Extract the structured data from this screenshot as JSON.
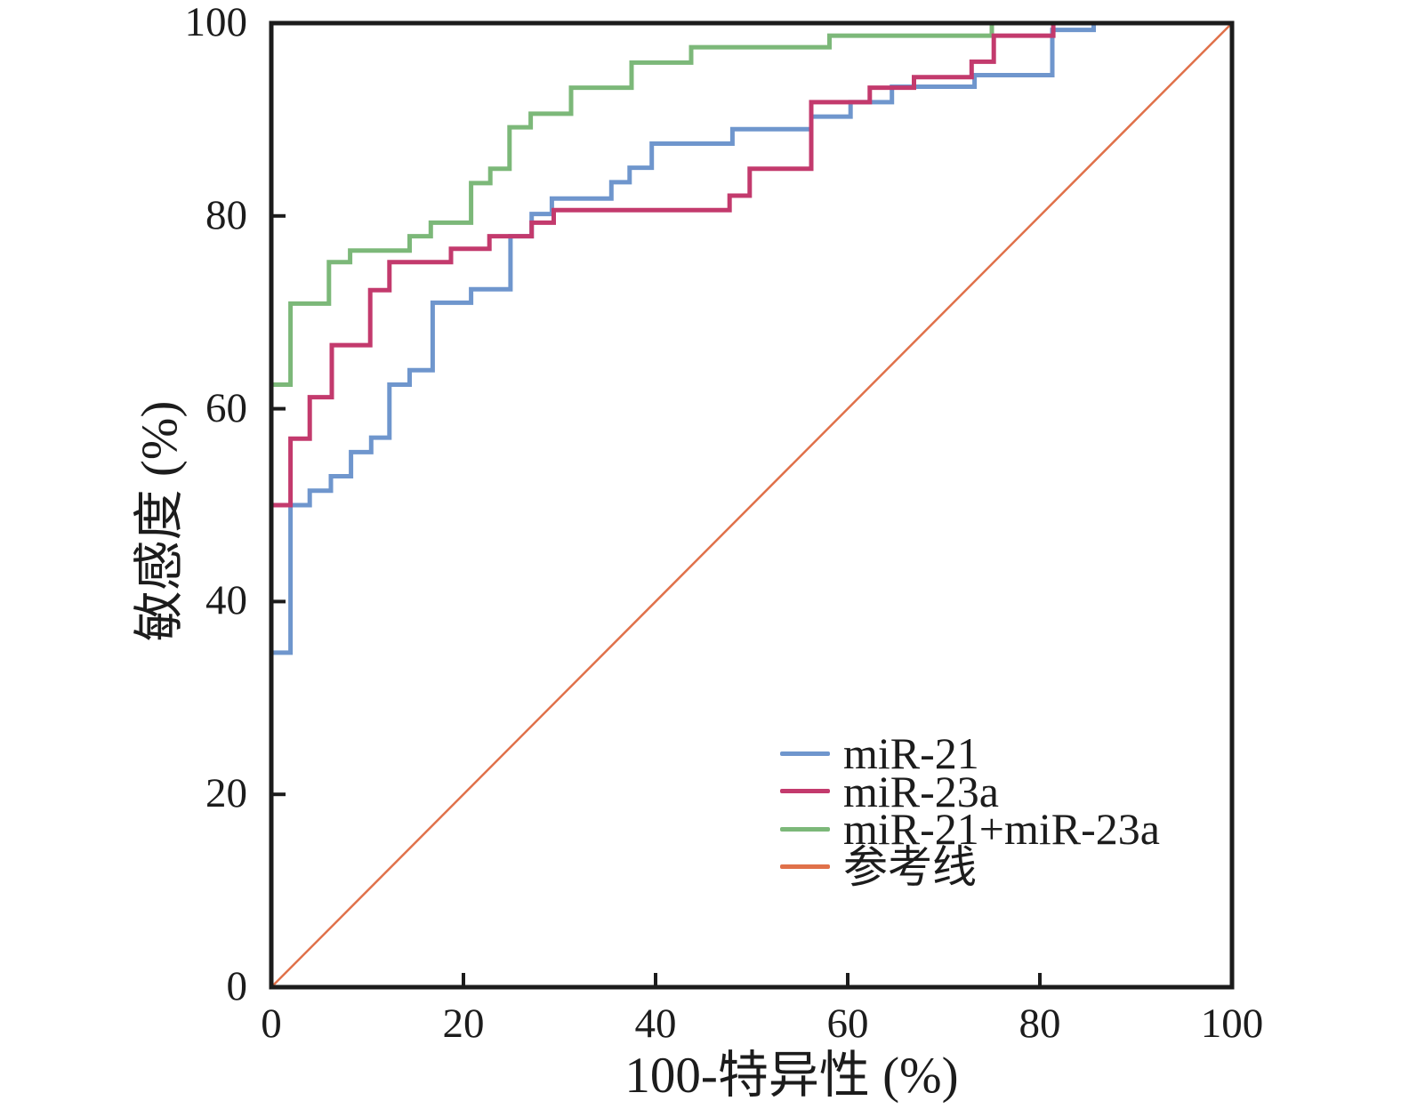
{
  "page": {
    "background": "#ffffff",
    "text_color": "#1c1c1c"
  },
  "chart_data": {
    "type": "line",
    "subtype": "roc_step_curves",
    "title": "",
    "xlabel": "100-特异性 (%)",
    "ylabel": "敏感度 (%)",
    "xlim": [
      0,
      100
    ],
    "ylim": [
      0,
      100
    ],
    "x_ticks": [
      "0",
      "20",
      "40",
      "60",
      "80",
      "100"
    ],
    "x_tick_values": [
      0,
      20,
      40,
      60,
      80,
      100
    ],
    "y_ticks": [
      "0",
      "20",
      "40",
      "60",
      "80",
      "100"
    ],
    "y_tick_values": [
      0,
      20,
      40,
      60,
      80,
      100
    ],
    "grid": false,
    "legend_position": "inside-lower-right",
    "axis_color": "#1c1c1c",
    "series": [
      {
        "id": "mir21",
        "name": "miR-21",
        "color": "#6f96cd",
        "line_width": 5,
        "points": [
          [
            0,
            0
          ],
          [
            0,
            34.7
          ],
          [
            2,
            34.7
          ],
          [
            2,
            50
          ],
          [
            4,
            50
          ],
          [
            4,
            51.5
          ],
          [
            6.2,
            51.5
          ],
          [
            6.2,
            53
          ],
          [
            8.3,
            53
          ],
          [
            8.3,
            55.5
          ],
          [
            10.4,
            55.5
          ],
          [
            10.4,
            57
          ],
          [
            12.3,
            57
          ],
          [
            12.3,
            62.5
          ],
          [
            14.4,
            62.5
          ],
          [
            14.4,
            64
          ],
          [
            16.8,
            64
          ],
          [
            16.8,
            71
          ],
          [
            20.8,
            71
          ],
          [
            20.8,
            72.4
          ],
          [
            24.9,
            72.4
          ],
          [
            24.9,
            77.9
          ],
          [
            27.1,
            77.9
          ],
          [
            27.1,
            80.2
          ],
          [
            29.2,
            80.2
          ],
          [
            29.2,
            81.8
          ],
          [
            35.4,
            81.8
          ],
          [
            35.4,
            83.5
          ],
          [
            37.3,
            83.5
          ],
          [
            37.3,
            85
          ],
          [
            39.6,
            85
          ],
          [
            39.6,
            87.5
          ],
          [
            48,
            87.5
          ],
          [
            48,
            89
          ],
          [
            56.2,
            89
          ],
          [
            56.2,
            90.3
          ],
          [
            60.3,
            90.3
          ],
          [
            60.3,
            91.8
          ],
          [
            64.6,
            91.8
          ],
          [
            64.6,
            93.4
          ],
          [
            73.2,
            93.4
          ],
          [
            73.2,
            94.6
          ],
          [
            81.3,
            94.6
          ],
          [
            81.3,
            99.3
          ],
          [
            85.6,
            99.3
          ],
          [
            85.6,
            100
          ],
          [
            100,
            100
          ]
        ]
      },
      {
        "id": "mir23a",
        "name": "miR-23a",
        "color": "#c33a6d",
        "line_width": 5,
        "points": [
          [
            0,
            0
          ],
          [
            0,
            50
          ],
          [
            2,
            50
          ],
          [
            2,
            56.9
          ],
          [
            4,
            56.9
          ],
          [
            4,
            61.2
          ],
          [
            6.3,
            61.2
          ],
          [
            6.3,
            66.6
          ],
          [
            10.3,
            66.6
          ],
          [
            10.3,
            72.3
          ],
          [
            12.3,
            72.3
          ],
          [
            12.3,
            75.2
          ],
          [
            18.7,
            75.2
          ],
          [
            18.7,
            76.6
          ],
          [
            22.7,
            76.6
          ],
          [
            22.7,
            77.9
          ],
          [
            27.1,
            77.9
          ],
          [
            27.1,
            79.3
          ],
          [
            29.4,
            79.3
          ],
          [
            29.4,
            80.6
          ],
          [
            47.7,
            80.6
          ],
          [
            47.7,
            82.1
          ],
          [
            49.8,
            82.1
          ],
          [
            49.8,
            84.9
          ],
          [
            56.2,
            84.9
          ],
          [
            56.2,
            91.8
          ],
          [
            62.3,
            91.8
          ],
          [
            62.3,
            93.3
          ],
          [
            66.9,
            93.3
          ],
          [
            66.9,
            94.4
          ],
          [
            72.9,
            94.4
          ],
          [
            72.9,
            96
          ],
          [
            75.2,
            96
          ],
          [
            75.2,
            98.7
          ],
          [
            81.4,
            98.7
          ],
          [
            81.4,
            100
          ],
          [
            100,
            100
          ]
        ]
      },
      {
        "id": "mir21-plus-mir23a",
        "name": "miR-21+miR-23a",
        "color": "#7cb879",
        "line_width": 5,
        "points": [
          [
            0,
            0
          ],
          [
            0,
            62.5
          ],
          [
            2,
            62.5
          ],
          [
            2,
            70.9
          ],
          [
            6,
            70.9
          ],
          [
            6,
            75.2
          ],
          [
            8.2,
            75.2
          ],
          [
            8.2,
            76.4
          ],
          [
            14.4,
            76.4
          ],
          [
            14.4,
            77.9
          ],
          [
            16.6,
            77.9
          ],
          [
            16.6,
            79.3
          ],
          [
            20.8,
            79.3
          ],
          [
            20.8,
            83.4
          ],
          [
            22.8,
            83.4
          ],
          [
            22.8,
            84.9
          ],
          [
            24.8,
            84.9
          ],
          [
            24.8,
            89.2
          ],
          [
            27,
            89.2
          ],
          [
            27,
            90.6
          ],
          [
            31.2,
            90.6
          ],
          [
            31.2,
            93.3
          ],
          [
            37.5,
            93.3
          ],
          [
            37.5,
            95.9
          ],
          [
            43.7,
            95.9
          ],
          [
            43.7,
            97.5
          ],
          [
            58.1,
            97.5
          ],
          [
            58.1,
            98.7
          ],
          [
            75,
            98.7
          ],
          [
            75,
            100
          ],
          [
            100,
            100
          ]
        ]
      },
      {
        "id": "reference",
        "name": "参考线",
        "color": "#e0714a",
        "line_width": 2.5,
        "role": "reference",
        "points": [
          [
            0,
            0
          ],
          [
            100,
            100
          ]
        ]
      }
    ]
  }
}
